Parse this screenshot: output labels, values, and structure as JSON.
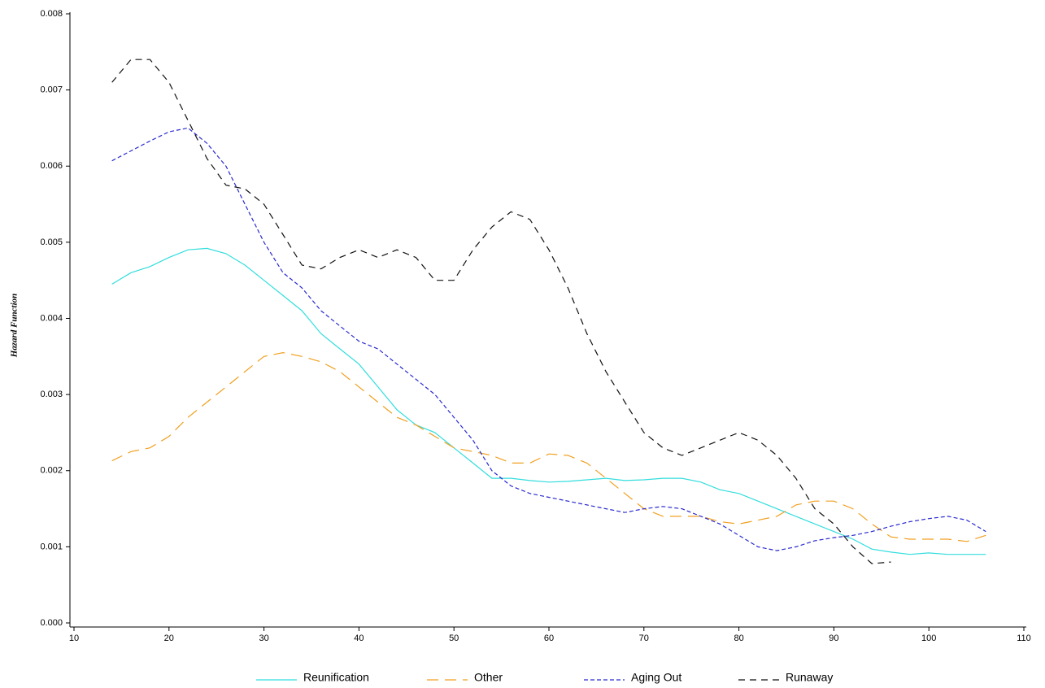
{
  "chart_data": {
    "type": "line",
    "y_label": "Hazard Function",
    "x": [
      14,
      16,
      18,
      20,
      22,
      24,
      26,
      28,
      30,
      32,
      34,
      36,
      38,
      40,
      42,
      44,
      46,
      48,
      50,
      52,
      54,
      56,
      58,
      60,
      62,
      64,
      66,
      68,
      70,
      72,
      74,
      76,
      78,
      80,
      82,
      84,
      86,
      88,
      90,
      92,
      94,
      96,
      98,
      100,
      102,
      104,
      106
    ],
    "series": [
      {
        "name": "Reunification",
        "color": "#33dddd",
        "dash": "none",
        "values": [
          0.00445,
          0.0046,
          0.00468,
          0.0048,
          0.0049,
          0.00492,
          0.00485,
          0.0047,
          0.0045,
          0.0043,
          0.0041,
          0.0038,
          0.0036,
          0.0034,
          0.0031,
          0.0028,
          0.0026,
          0.0025,
          0.0023,
          0.0021,
          0.0019,
          0.0019,
          0.00187,
          0.00185,
          0.00186,
          0.00188,
          0.0019,
          0.00187,
          0.00188,
          0.0019,
          0.0019,
          0.00185,
          0.00175,
          0.0017,
          0.0016,
          0.0015,
          0.0014,
          0.0013,
          0.0012,
          0.0011,
          0.00097,
          0.00093,
          0.0009,
          0.00092,
          0.0009,
          0.0009,
          0.0009
        ]
      },
      {
        "name": "Other",
        "color": "#f0a020",
        "dash": "14,8",
        "values": [
          0.00213,
          0.00225,
          0.0023,
          0.00245,
          0.0027,
          0.0029,
          0.0031,
          0.0033,
          0.0035,
          0.00355,
          0.0035,
          0.00343,
          0.0033,
          0.0031,
          0.0029,
          0.0027,
          0.0026,
          0.00245,
          0.0023,
          0.00225,
          0.0022,
          0.0021,
          0.0021,
          0.00222,
          0.0022,
          0.0021,
          0.0019,
          0.0017,
          0.0015,
          0.0014,
          0.0014,
          0.0014,
          0.00133,
          0.0013,
          0.00135,
          0.0014,
          0.00155,
          0.0016,
          0.0016,
          0.0015,
          0.0013,
          0.00113,
          0.0011,
          0.0011,
          0.0011,
          0.00107,
          0.00115
        ]
      },
      {
        "name": "Aging Out",
        "color": "#2a2ad0",
        "dash": "5,3",
        "values": [
          0.00607,
          0.0062,
          0.00633,
          0.00645,
          0.0065,
          0.0063,
          0.006,
          0.0055,
          0.005,
          0.0046,
          0.0044,
          0.0041,
          0.0039,
          0.0037,
          0.0036,
          0.0034,
          0.0032,
          0.003,
          0.0027,
          0.0024,
          0.002,
          0.0018,
          0.0017,
          0.00165,
          0.0016,
          0.00155,
          0.0015,
          0.00145,
          0.0015,
          0.00153,
          0.0015,
          0.0014,
          0.0013,
          0.00115,
          0.001,
          0.00095,
          0.001,
          0.00108,
          0.00112,
          0.00115,
          0.0012,
          0.00127,
          0.00133,
          0.00137,
          0.0014,
          0.00135,
          0.0012
        ]
      },
      {
        "name": "Runaway",
        "color": "#111111",
        "dash": "8,6",
        "values": [
          0.0071,
          0.0074,
          0.0074,
          0.0071,
          0.0066,
          0.0061,
          0.00575,
          0.0057,
          0.0055,
          0.0051,
          0.0047,
          0.00465,
          0.0048,
          0.0049,
          0.0048,
          0.0049,
          0.0048,
          0.0045,
          0.0045,
          0.0049,
          0.0052,
          0.0054,
          0.0053,
          0.0049,
          0.0044,
          0.0038,
          0.0033,
          0.0029,
          0.0025,
          0.0023,
          0.0022,
          0.0023,
          0.0024,
          0.0025,
          0.0024,
          0.0022,
          0.0019,
          0.0015,
          0.0013,
          0.001,
          0.00078,
          0.0008,
          null,
          null,
          null,
          null,
          null
        ]
      }
    ],
    "xlim": [
      10,
      110
    ],
    "xticks": [
      10,
      20,
      30,
      40,
      50,
      60,
      70,
      80,
      90,
      100,
      110
    ],
    "ylim": [
      0,
      0.008
    ],
    "yticks": [
      {
        "value": 0,
        "label": "0.000"
      },
      0.001,
      0.002,
      0.003,
      0.004,
      0.005,
      0.006,
      0.007,
      0.008
    ],
    "legend": "bottom"
  }
}
